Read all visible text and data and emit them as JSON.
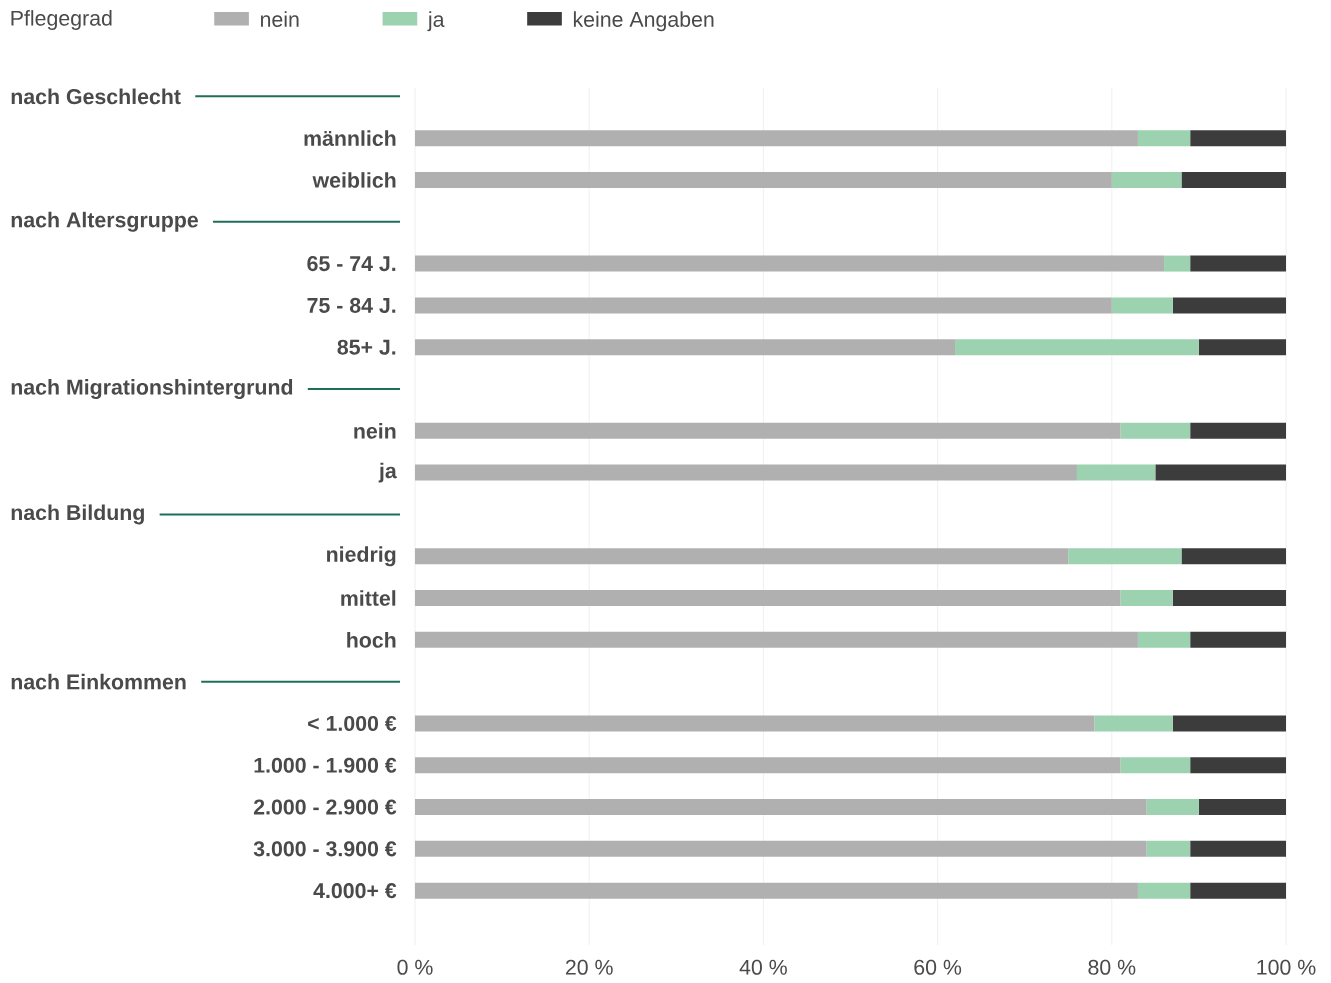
{
  "chart_data": {
    "type": "bar",
    "orientation": "horizontal",
    "stacked": true,
    "legend_title": "Pflegegrad",
    "categories": [
      null,
      "männlich",
      "weiblich",
      null,
      "65 - 74 J.",
      "75 - 84 J.",
      "85+ J.",
      null,
      "nein",
      "ja",
      null,
      "niedrig",
      "mittel",
      "hoch",
      null,
      "< 1.000 €",
      "1.000 - 1.900 €",
      "2.000 - 2.900 €",
      "3.000 - 3.900 €",
      "4.000+ €"
    ],
    "annotations": [
      "nach Geschlecht",
      "nach Altersgruppe",
      "nach Migrationshintergrund",
      "nach Bildung",
      "nach Einkommen"
    ],
    "series": [
      {
        "name": "nein",
        "color": "#b0b0b0",
        "values": [
          null,
          83,
          80,
          null,
          86,
          80,
          62,
          null,
          81,
          76,
          null,
          75,
          81,
          83,
          null,
          78,
          81,
          84,
          84,
          83
        ]
      },
      {
        "name": "ja",
        "color": "#9dd2b0",
        "values": [
          null,
          6,
          8,
          null,
          3,
          7,
          28,
          null,
          8,
          9,
          null,
          13,
          6,
          6,
          null,
          9,
          8,
          6,
          5,
          6
        ]
      },
      {
        "name": "keine Angaben",
        "color": "#3c3c3c",
        "values": [
          null,
          11,
          12,
          null,
          11,
          13,
          10,
          null,
          11,
          15,
          null,
          12,
          13,
          11,
          null,
          13,
          11,
          10,
          11,
          11
        ]
      }
    ],
    "xlim": [
      0,
      100
    ],
    "xticks": [
      {
        "value": 0,
        "label": "0 %"
      },
      {
        "value": 20,
        "label": "20 %"
      },
      {
        "value": 40,
        "label": "40 %"
      },
      {
        "value": 60,
        "label": "60 %"
      },
      {
        "value": 80,
        "label": "80 %"
      },
      {
        "value": 100,
        "label": "100 %"
      }
    ],
    "grid": "x",
    "legend": "top left"
  }
}
